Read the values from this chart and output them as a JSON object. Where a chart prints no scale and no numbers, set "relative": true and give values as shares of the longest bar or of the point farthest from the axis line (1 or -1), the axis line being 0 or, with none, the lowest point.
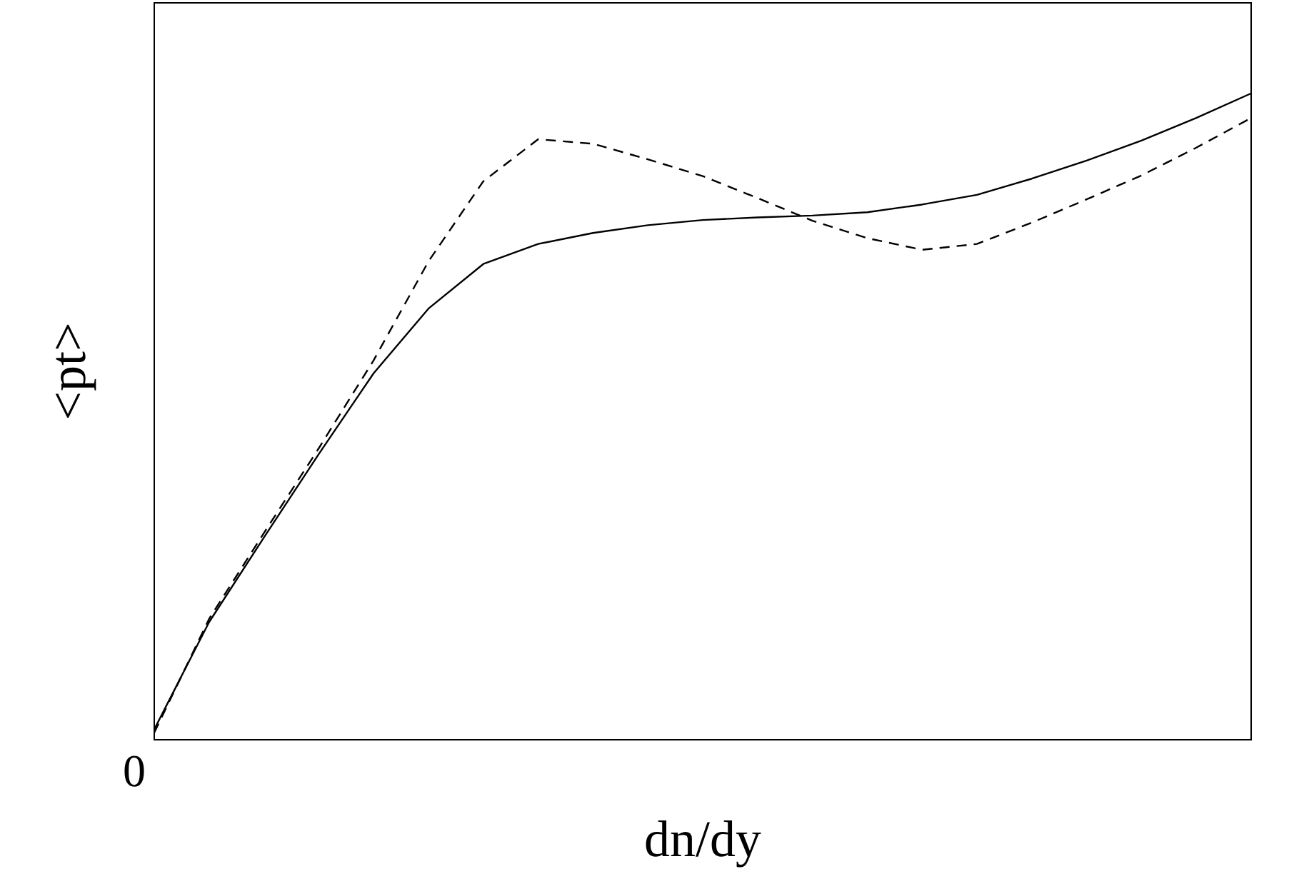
{
  "chart_data": {
    "type": "line",
    "xlabel": "dn/dy",
    "ylabel": "<pt>",
    "relative": true,
    "legend": false,
    "marker": "none",
    "annotations": [
      "0"
    ],
    "categories": [
      null,
      null,
      null,
      null,
      null,
      null,
      null,
      null,
      null,
      null,
      null,
      null,
      null,
      null,
      null,
      null,
      null,
      null,
      null,
      null,
      null
    ],
    "series": [
      {
        "color": "#000000",
        "line_style": "solid",
        "values": [
          0.016,
          0.182,
          0.313,
          0.442,
          0.567,
          0.667,
          0.736,
          0.767,
          0.784,
          0.796,
          0.804,
          0.808,
          0.811,
          0.816,
          0.828,
          0.843,
          0.868,
          0.896,
          0.927,
          0.962,
          1
        ]
      },
      {
        "color": "#000000",
        "line_style": "dashed",
        "values": [
          0.011,
          0.187,
          0.32,
          0.451,
          0.587,
          0.74,
          0.864,
          0.929,
          0.922,
          0.898,
          0.872,
          0.838,
          0.803,
          0.776,
          0.758,
          0.767,
          0.8,
          0.836,
          0.873,
          0.916,
          0.962
        ]
      }
    ]
  }
}
